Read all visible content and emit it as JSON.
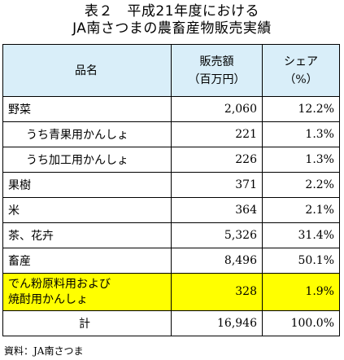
{
  "title": {
    "line1": "表２　平成21年度における",
    "line2": "JA南さつまの農畜産物販売実績"
  },
  "table": {
    "headers": {
      "name": "品名",
      "sales_line1": "販売額",
      "sales_line2": "（百万円）",
      "share_line1": "シェア",
      "share_line2": "（%）"
    },
    "rows": [
      {
        "name": "野菜",
        "sales": "2,060",
        "share": "12.2%"
      },
      {
        "name": "うち青果用かんしょ",
        "sales": "221",
        "share": "1.3%"
      },
      {
        "name": "うち加工用かんしょ",
        "sales": "226",
        "share": "1.3%"
      },
      {
        "name": "果樹",
        "sales": "371",
        "share": "2.2%"
      },
      {
        "name": "米",
        "sales": "364",
        "share": "2.1%"
      },
      {
        "name": "茶、花卉",
        "sales": "5,326",
        "share": "31.4%"
      },
      {
        "name": "畜産",
        "sales": "8,496",
        "share": "50.1%"
      },
      {
        "name_line1": "でん粉原料用および",
        "name_line2": "焼酎用かんしょ",
        "sales": "328",
        "share": "1.9%"
      }
    ],
    "total": {
      "name": "計",
      "sales": "16,946",
      "share": "100.0%"
    }
  },
  "colors": {
    "header_bg": "#d9eef9",
    "highlight_bg": "#ffff00"
  },
  "source": "資料：JA南さつま"
}
